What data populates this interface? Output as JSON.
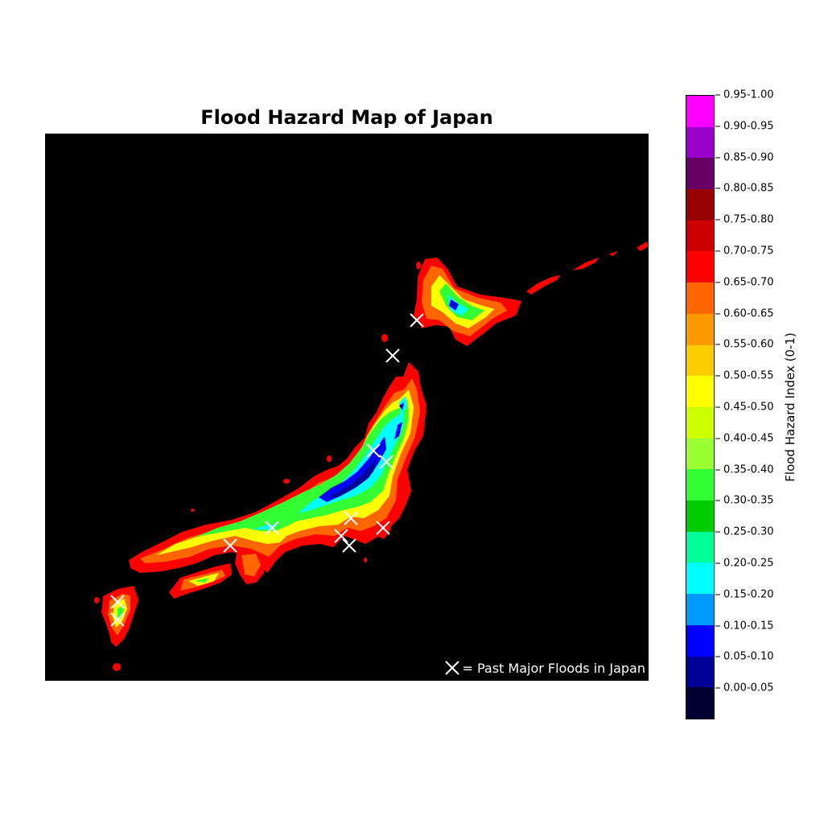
{
  "title": "Flood Hazard Map of Japan",
  "legend_note": "= Past Major Floods in Japan",
  "legend_marker_icon": "x-cross-marker-icon",
  "colorbar": {
    "label": "Flood Hazard Index (0-1)",
    "bins": [
      {
        "label": "0.00-0.05",
        "color": "#000033"
      },
      {
        "label": "0.05-0.10",
        "color": "#000099"
      },
      {
        "label": "0.10-0.15",
        "color": "#0000ff"
      },
      {
        "label": "0.15-0.20",
        "color": "#0099ff"
      },
      {
        "label": "0.20-0.25",
        "color": "#00ffff"
      },
      {
        "label": "0.25-0.30",
        "color": "#00ff99"
      },
      {
        "label": "0.30-0.35",
        "color": "#00cc00"
      },
      {
        "label": "0.35-0.40",
        "color": "#33ff33"
      },
      {
        "label": "0.40-0.45",
        "color": "#99ff33"
      },
      {
        "label": "0.45-0.50",
        "color": "#ccff00"
      },
      {
        "label": "0.50-0.55",
        "color": "#ffff00"
      },
      {
        "label": "0.55-0.60",
        "color": "#ffcc00"
      },
      {
        "label": "0.60-0.65",
        "color": "#ff9900"
      },
      {
        "label": "0.65-0.70",
        "color": "#ff6600"
      },
      {
        "label": "0.70-0.75",
        "color": "#ff0000"
      },
      {
        "label": "0.75-0.80",
        "color": "#cc0000"
      },
      {
        "label": "0.80-0.85",
        "color": "#990000"
      },
      {
        "label": "0.85-0.90",
        "color": "#660066"
      },
      {
        "label": "0.90-0.95",
        "color": "#9900cc"
      },
      {
        "label": "0.95-1.00",
        "color": "#ff00ff"
      }
    ]
  },
  "colors": {
    "background": "#000000",
    "coast": "#ff0000",
    "lowland": "#ff6600",
    "mid": "#ffff00",
    "upland": "#33ff33",
    "high": "#00ffff",
    "mountain": "#0000ff",
    "peak": "#000099",
    "marker": "#ffffff"
  }
}
